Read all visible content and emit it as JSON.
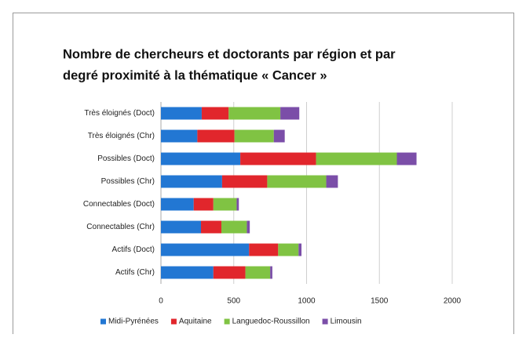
{
  "chart_data": {
    "type": "hbar_stacked",
    "title": [
      "Nombre de chercheurs et doctorants par région et par",
      "degré proximité à la thématique « Cancer »"
    ],
    "categories": [
      "Très éloignés (Doct)",
      "Très éloignés  (Chr)",
      "Possibles (Doct)",
      "Possibles (Chr)",
      "Connectables (Doct)",
      "Connectables  (Chr)",
      "Actifs (Doct)",
      "Actifs (Chr)"
    ],
    "series": [
      {
        "name": "Midi-Pyrénées",
        "color": "#2277d3",
        "values": [
          280,
          250,
          545,
          420,
          225,
          275,
          605,
          360
        ]
      },
      {
        "name": "Aquitaine",
        "color": "#e1262c",
        "values": [
          185,
          255,
          520,
          310,
          135,
          140,
          200,
          220
        ]
      },
      {
        "name": "Languedoc-Roussillon",
        "color": "#80c343",
        "values": [
          355,
          270,
          555,
          405,
          160,
          175,
          140,
          170
        ]
      },
      {
        "name": "Limousin",
        "color": "#7b4ea8",
        "values": [
          130,
          75,
          135,
          80,
          15,
          20,
          20,
          15
        ]
      }
    ],
    "xlim": [
      0,
      2000
    ],
    "xticks": [
      0,
      500,
      1000,
      1500,
      2000
    ],
    "grid": true,
    "legend": "bottom"
  }
}
